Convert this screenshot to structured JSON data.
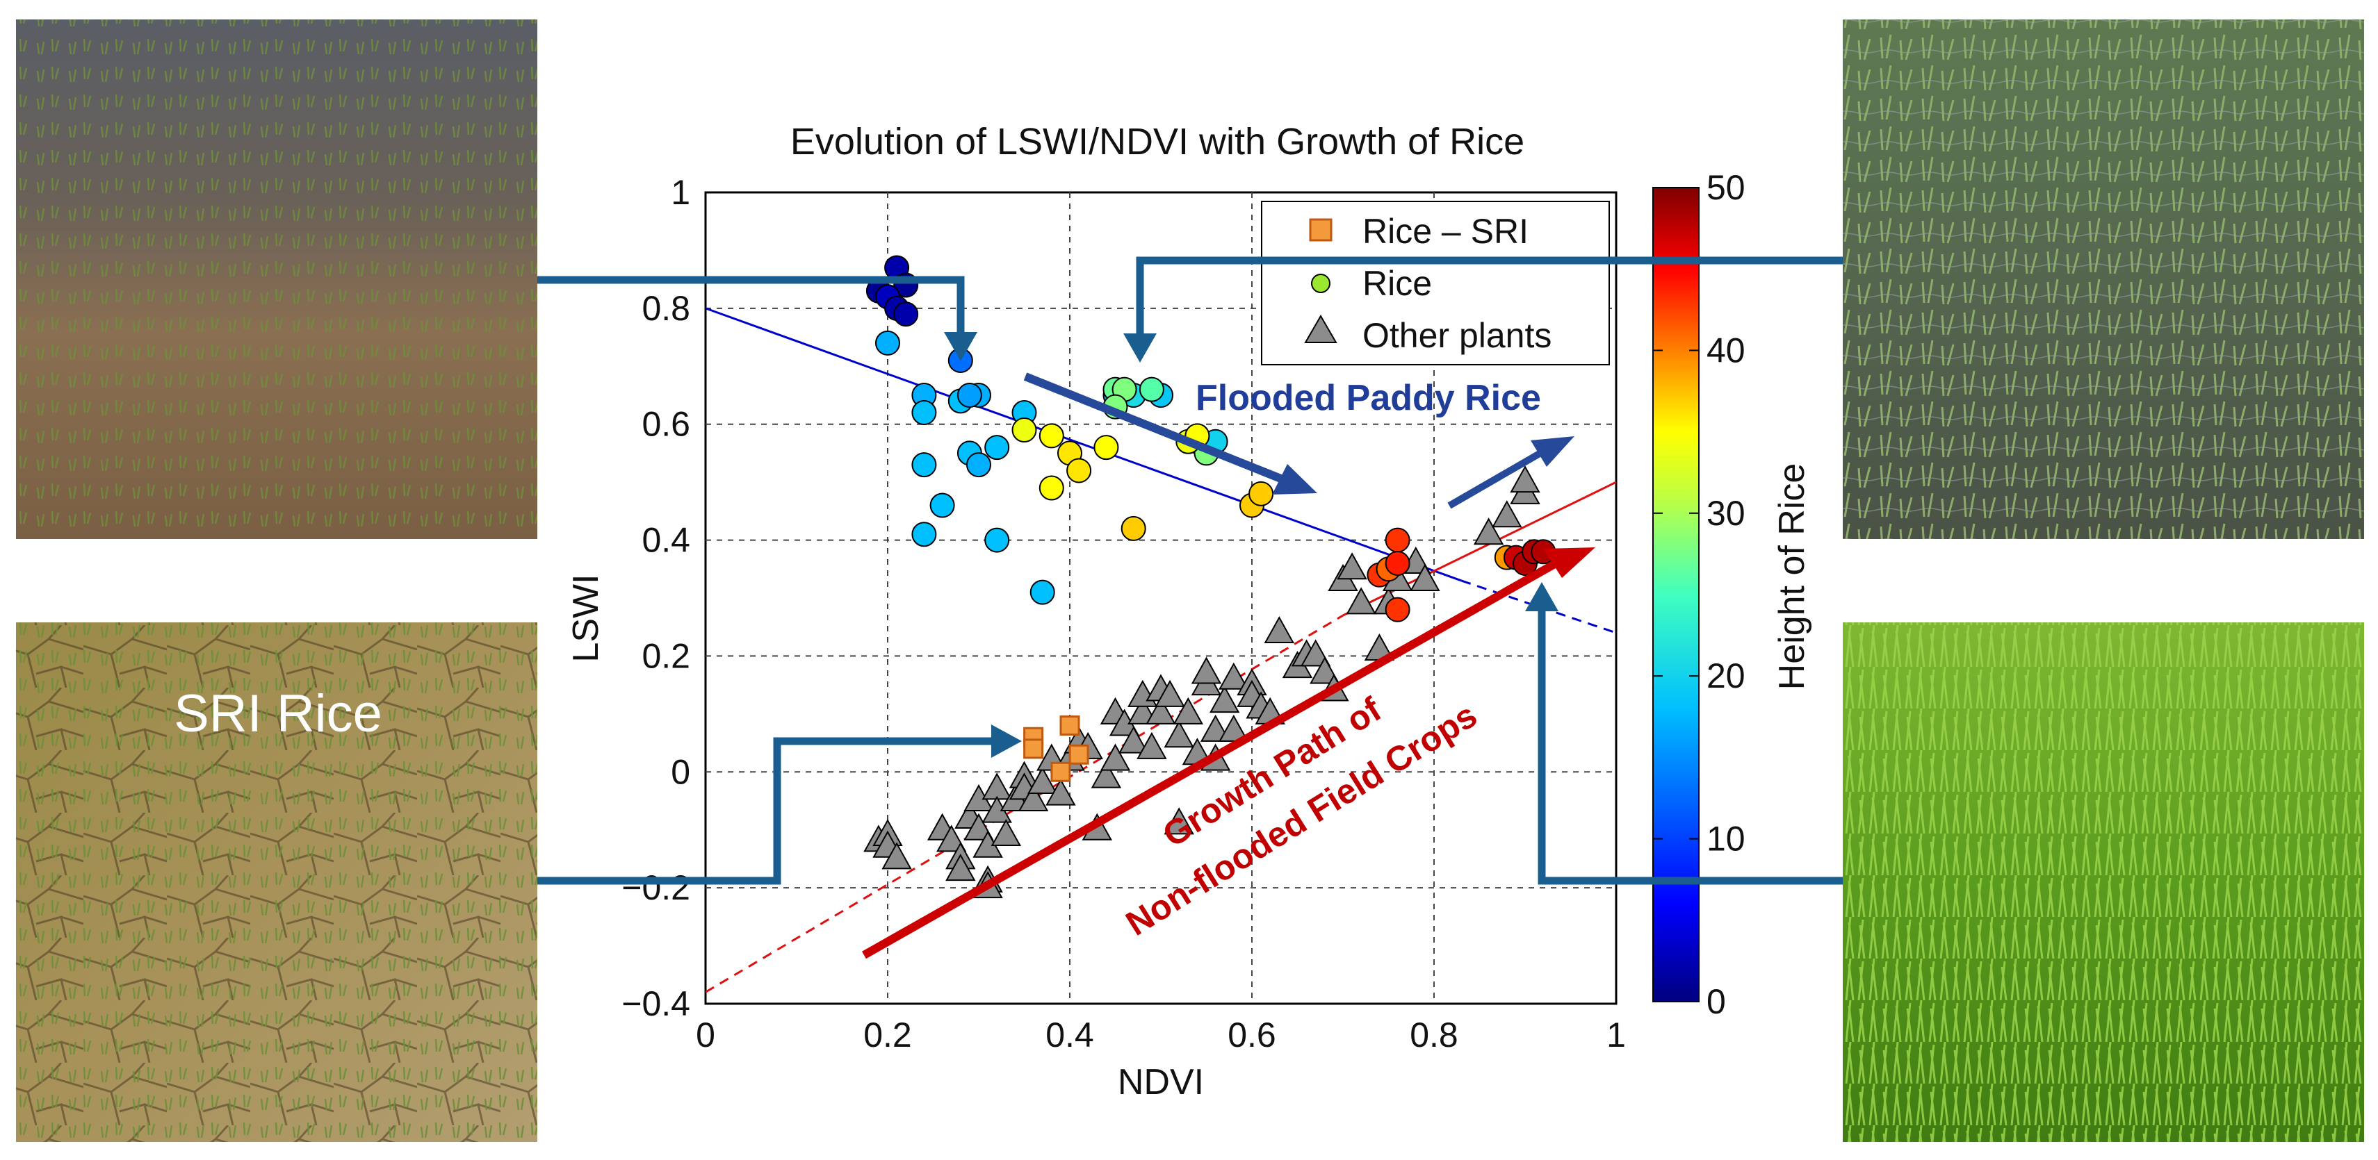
{
  "chart_data": {
    "type": "scatter",
    "title": "Evolution of LSWI/NDVI with Growth of Rice",
    "xlabel": "NDVI",
    "ylabel": "LSWI",
    "xlim": [
      0,
      1
    ],
    "ylim": [
      -0.4,
      1
    ],
    "x_ticks": [
      "0",
      "0.2",
      "0.4",
      "0.6",
      "0.8",
      "1"
    ],
    "y_ticks": [
      "−0.4",
      "−0.2",
      "0",
      "0.2",
      "0.4",
      "0.6",
      "0.8",
      "1"
    ],
    "grid": true,
    "legend_position": "top-right",
    "legend": {
      "rice_sri": "Rice – SRI",
      "rice": "Rice",
      "other": "Other plants"
    },
    "colorbar": {
      "label": "Height of Rice",
      "range": [
        0,
        50
      ],
      "ticks": [
        "0",
        "10",
        "20",
        "30",
        "40",
        "50"
      ]
    },
    "annotations": {
      "flooded": "Flooded Paddy Rice",
      "growth_line1": "Growth Path of",
      "growth_line2": "Non-flooded Field Crops",
      "sri_photo_label": "SRI Rice"
    },
    "colors": {
      "flooded_text": "#1f3d99",
      "growth_text": "#c00000",
      "blue_arrow": "#264a99",
      "red_arrow": "#cc0000",
      "callout_arrow": "#1a5d8f",
      "triangle_fill": "#8c8c8c",
      "sri_fill": "#f39a3c"
    },
    "reference_lines": [
      {
        "name": "flooded-rice-fit",
        "color": "#0000cc",
        "solid_from": [
          0,
          0.8
        ],
        "solid_to": [
          0.83,
          0.33
        ],
        "dashed_to": [
          1,
          0.24
        ]
      },
      {
        "name": "field-crop-fit",
        "color": "#e01010",
        "dashed_from": [
          0,
          -0.38
        ],
        "dashed_to": [
          0.7,
          0.27
        ],
        "solid_to": [
          1,
          0.5
        ]
      }
    ],
    "series": [
      {
        "name": "Rice",
        "marker": "circle",
        "note": "points colored by rice height [NDVI, LSWI, height]",
        "points": [
          [
            0.21,
            0.87,
            2
          ],
          [
            0.19,
            0.83,
            1
          ],
          [
            0.22,
            0.84,
            1
          ],
          [
            0.2,
            0.82,
            3
          ],
          [
            0.21,
            0.8,
            2
          ],
          [
            0.22,
            0.79,
            2
          ],
          [
            0.2,
            0.74,
            17
          ],
          [
            0.28,
            0.71,
            13
          ],
          [
            0.24,
            0.65,
            17
          ],
          [
            0.28,
            0.64,
            18
          ],
          [
            0.3,
            0.65,
            17
          ],
          [
            0.29,
            0.65,
            16
          ],
          [
            0.24,
            0.62,
            18
          ],
          [
            0.35,
            0.62,
            18
          ],
          [
            0.45,
            0.65,
            18
          ],
          [
            0.47,
            0.65,
            21
          ],
          [
            0.5,
            0.65,
            19
          ],
          [
            0.24,
            0.53,
            18
          ],
          [
            0.29,
            0.55,
            18
          ],
          [
            0.3,
            0.53,
            17
          ],
          [
            0.32,
            0.56,
            18
          ],
          [
            0.26,
            0.46,
            18
          ],
          [
            0.24,
            0.41,
            18
          ],
          [
            0.32,
            0.4,
            18
          ],
          [
            0.37,
            0.31,
            18
          ],
          [
            0.45,
            0.66,
            27
          ],
          [
            0.46,
            0.66,
            28
          ],
          [
            0.49,
            0.66,
            26
          ],
          [
            0.45,
            0.63,
            28
          ],
          [
            0.54,
            0.57,
            26
          ],
          [
            0.55,
            0.55,
            28
          ],
          [
            0.56,
            0.57,
            20
          ],
          [
            0.35,
            0.59,
            34
          ],
          [
            0.38,
            0.58,
            35
          ],
          [
            0.4,
            0.55,
            36
          ],
          [
            0.44,
            0.56,
            35
          ],
          [
            0.53,
            0.57,
            34
          ],
          [
            0.54,
            0.58,
            35
          ],
          [
            0.38,
            0.49,
            35
          ],
          [
            0.41,
            0.52,
            36
          ],
          [
            0.6,
            0.46,
            37
          ],
          [
            0.61,
            0.48,
            37
          ],
          [
            0.47,
            0.42,
            37
          ],
          [
            0.76,
            0.4,
            43
          ],
          [
            0.74,
            0.34,
            43
          ],
          [
            0.75,
            0.35,
            41
          ],
          [
            0.76,
            0.36,
            44
          ],
          [
            0.76,
            0.28,
            43
          ],
          [
            0.88,
            0.37,
            39
          ],
          [
            0.89,
            0.37,
            47
          ],
          [
            0.9,
            0.36,
            48
          ],
          [
            0.91,
            0.38,
            48
          ],
          [
            0.92,
            0.38,
            48
          ]
        ]
      },
      {
        "name": "Rice – SRI",
        "marker": "square",
        "points": [
          [
            0.36,
            0.06
          ],
          [
            0.36,
            0.04
          ],
          [
            0.4,
            0.08
          ],
          [
            0.41,
            0.03
          ],
          [
            0.39,
            0.0
          ]
        ]
      },
      {
        "name": "Other plants",
        "marker": "triangle",
        "points": [
          [
            0.19,
            -0.12
          ],
          [
            0.2,
            -0.11
          ],
          [
            0.2,
            -0.13
          ],
          [
            0.21,
            -0.15
          ],
          [
            0.26,
            -0.1
          ],
          [
            0.27,
            -0.12
          ],
          [
            0.28,
            -0.15
          ],
          [
            0.28,
            -0.17
          ],
          [
            0.29,
            -0.08
          ],
          [
            0.3,
            -0.05
          ],
          [
            0.3,
            -0.1
          ],
          [
            0.31,
            -0.13
          ],
          [
            0.31,
            -0.19
          ],
          [
            0.31,
            -0.2
          ],
          [
            0.32,
            -0.03
          ],
          [
            0.32,
            -0.07
          ],
          [
            0.33,
            -0.11
          ],
          [
            0.34,
            -0.05
          ],
          [
            0.35,
            -0.01
          ],
          [
            0.35,
            -0.03
          ],
          [
            0.36,
            -0.05
          ],
          [
            0.37,
            -0.02
          ],
          [
            0.38,
            0.02
          ],
          [
            0.39,
            -0.04
          ],
          [
            0.4,
            0.02
          ],
          [
            0.41,
            0.05
          ],
          [
            0.42,
            0.04
          ],
          [
            0.43,
            -0.1
          ],
          [
            0.44,
            -0.01
          ],
          [
            0.45,
            0.02
          ],
          [
            0.45,
            0.1
          ],
          [
            0.46,
            0.08
          ],
          [
            0.47,
            0.05
          ],
          [
            0.48,
            0.1
          ],
          [
            0.48,
            0.13
          ],
          [
            0.49,
            0.04
          ],
          [
            0.5,
            0.1
          ],
          [
            0.5,
            0.14
          ],
          [
            0.51,
            0.13
          ],
          [
            0.52,
            -0.09
          ],
          [
            0.52,
            0.06
          ],
          [
            0.53,
            0.1
          ],
          [
            0.54,
            0.03
          ],
          [
            0.55,
            0.15
          ],
          [
            0.55,
            0.17
          ],
          [
            0.56,
            0.07
          ],
          [
            0.56,
            0.02
          ],
          [
            0.57,
            0.12
          ],
          [
            0.58,
            0.16
          ],
          [
            0.58,
            0.07
          ],
          [
            0.6,
            0.15
          ],
          [
            0.6,
            0.13
          ],
          [
            0.61,
            0.11
          ],
          [
            0.62,
            0.1
          ],
          [
            0.63,
            0.24
          ],
          [
            0.65,
            0.18
          ],
          [
            0.66,
            0.2
          ],
          [
            0.67,
            0.2
          ],
          [
            0.68,
            0.17
          ],
          [
            0.69,
            0.14
          ],
          [
            0.7,
            0.33
          ],
          [
            0.71,
            0.35
          ],
          [
            0.72,
            0.29
          ],
          [
            0.74,
            0.21
          ],
          [
            0.75,
            0.29
          ],
          [
            0.76,
            0.33
          ],
          [
            0.78,
            0.36
          ],
          [
            0.79,
            0.33
          ],
          [
            0.86,
            0.41
          ],
          [
            0.88,
            0.44
          ],
          [
            0.9,
            0.48
          ],
          [
            0.9,
            0.5
          ]
        ]
      }
    ]
  }
}
